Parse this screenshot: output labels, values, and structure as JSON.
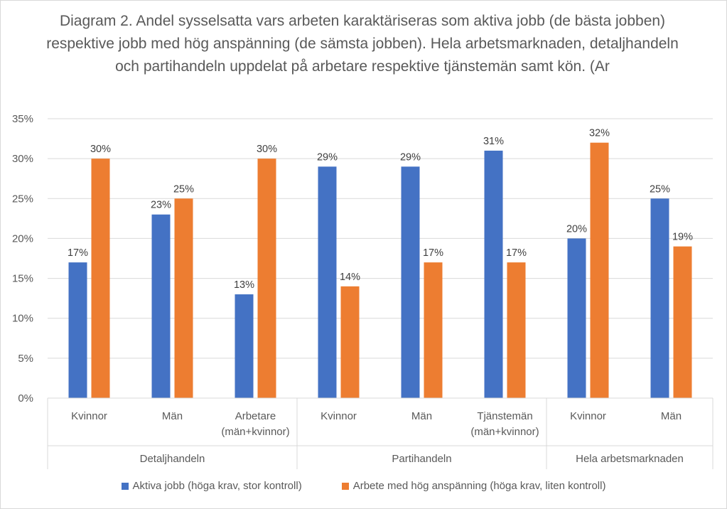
{
  "chart_data": {
    "type": "bar",
    "title": "Diagram 2. Andel sysselsatta vars arbeten karaktäriseras som aktiva jobb (de bästa jobben) respektive jobb med hög anspänning (de sämsta jobben). Hela arbetsmarknaden, detaljhandeln och partihandeln uppdelat på arbetare respektive tjänstemän samt kön. (Ar",
    "categories": [
      {
        "label": [
          "Kvinnor"
        ],
        "group": "Detaljhandeln"
      },
      {
        "label": [
          "Män"
        ],
        "group": "Detaljhandeln"
      },
      {
        "label": [
          "Arbetare",
          "(män+kvinnor)"
        ],
        "group": "Detaljhandeln"
      },
      {
        "label": [
          "Kvinnor"
        ],
        "group": "Partihandeln"
      },
      {
        "label": [
          "Män"
        ],
        "group": "Partihandeln"
      },
      {
        "label": [
          "Tjänstemän",
          "(män+kvinnor)"
        ],
        "group": "Partihandeln"
      },
      {
        "label": [
          "Kvinnor"
        ],
        "group": "Hela arbetsmarknaden"
      },
      {
        "label": [
          "Män"
        ],
        "group": "Hela arbetsmarknaden"
      }
    ],
    "groups": [
      "Detaljhandeln",
      "Partihandeln",
      "Hela arbetsmarknaden"
    ],
    "series": [
      {
        "name": "Aktiva jobb (höga krav, stor kontroll)",
        "color": "#4472c4",
        "values": [
          17,
          23,
          13,
          29,
          29,
          31,
          20,
          25
        ]
      },
      {
        "name": "Arbete med hög anspänning (höga krav, liten kontroll)",
        "color": "#ed7d31",
        "values": [
          30,
          25,
          30,
          14,
          17,
          17,
          32,
          19
        ]
      }
    ],
    "value_suffix": "%",
    "ylim": [
      0,
      35
    ],
    "yticks": [
      "0%",
      "5%",
      "10%",
      "15%",
      "20%",
      "25%",
      "30%",
      "35%"
    ],
    "grid": true,
    "legend_position": "bottom"
  }
}
